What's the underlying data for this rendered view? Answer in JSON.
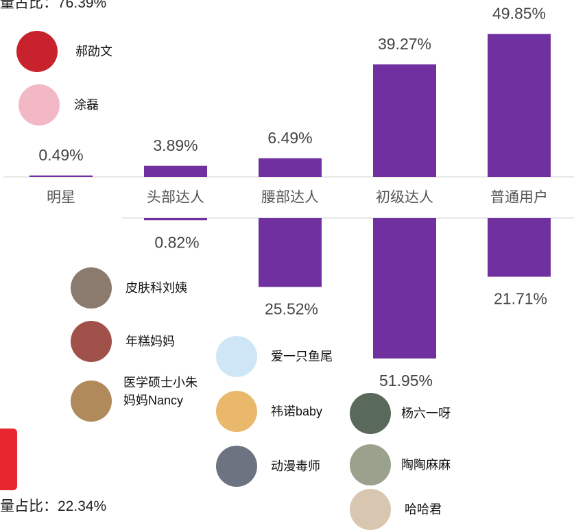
{
  "chart_data": {
    "type": "bar",
    "top_note": "量占比：76.39%",
    "bottom_note": "量占比：22.34%",
    "categories": [
      "明星",
      "头部达人",
      "腰部达人",
      "初级达人",
      "普通用户"
    ],
    "ylim": [
      0,
      50
    ],
    "y2lim": [
      0,
      52
    ],
    "series": [
      {
        "color": "#7030a0",
        "values": [
          0.49,
          3.89,
          6.49,
          39.27,
          49.85
        ],
        "value_labels": [
          "0.49%",
          "3.89%",
          "6.49%",
          "39.27%",
          "49.85%"
        ]
      },
      {
        "color": "#7030a0",
        "axis": "y2",
        "values": [
          null,
          0.82,
          25.52,
          51.95,
          21.71
        ],
        "value_labels": [
          null,
          "0.82%",
          "25.52%",
          "51.95%",
          "21.71%"
        ]
      }
    ],
    "avatars": [
      {
        "name": "郝劭文",
        "color": "#c8232c"
      },
      {
        "name": "涂磊",
        "color": "#f2b8c6"
      },
      {
        "name": "皮肤科刘姨",
        "color": "#8b7a6e"
      },
      {
        "name": "年糕妈妈",
        "color": "#a0524a"
      },
      {
        "name": "医学硕士小朱妈妈Nancy",
        "color": "#b08a5a"
      },
      {
        "name": "爱一只鱼尾",
        "color": "#cfe6f7"
      },
      {
        "name": "祎诺baby",
        "color": "#e9b86a"
      },
      {
        "name": "动漫毒师",
        "color": "#6b7480"
      },
      {
        "name": "杨六一呀",
        "color": "#5a6a5a"
      },
      {
        "name": "陶陶麻麻",
        "color": "#9aa28e"
      },
      {
        "name": "哈哈君",
        "color": "#d9c6b0"
      }
    ]
  }
}
